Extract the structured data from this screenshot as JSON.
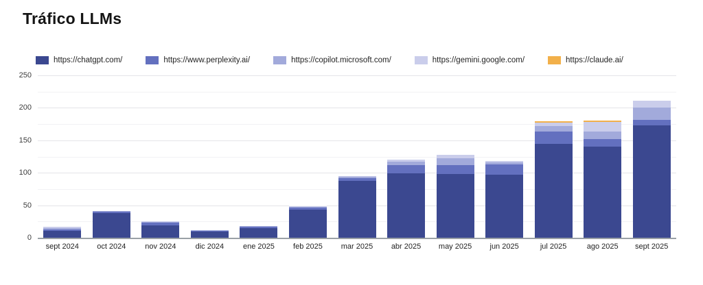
{
  "page": {
    "title": "Tráfico LLMs"
  },
  "chart_data": {
    "type": "bar",
    "stacked": true,
    "title": "Tráfico LLMs",
    "legend_position": "top",
    "grid": "horizontal major every 50, minor every 25",
    "ylim": [
      0,
      250
    ],
    "yticks": [
      0,
      50,
      100,
      150,
      200,
      250
    ],
    "categories": [
      "sept 2024",
      "oct 2024",
      "nov 2024",
      "dic 2024",
      "ene 2025",
      "feb 2025",
      "mar 2025",
      "abr 2025",
      "may 2025",
      "jun 2025",
      "jul 2025",
      "ago 2025",
      "sept 2025"
    ],
    "series": [
      {
        "name": "https://chatgpt.com/",
        "color": "#3b4890",
        "values": [
          11,
          38,
          19,
          9,
          15,
          43,
          88,
          99,
          98,
          97,
          145,
          140,
          173
        ]
      },
      {
        "name": "https://www.perplexity.ai/",
        "color": "#6370bf",
        "values": [
          2,
          2,
          4,
          2,
          2,
          3,
          4,
          13,
          14,
          16,
          18,
          12,
          8
        ]
      },
      {
        "name": "https://copilot.microsoft.com/",
        "color": "#a2aadb",
        "values": [
          2,
          1,
          1,
          1,
          1,
          2,
          2,
          5,
          10,
          3,
          9,
          12,
          19
        ]
      },
      {
        "name": "https://gemini.google.com/",
        "color": "#cacdeb",
        "values": [
          2,
          0,
          1,
          0,
          0,
          1,
          1,
          3,
          6,
          2,
          5,
          14,
          11
        ]
      },
      {
        "name": "https://claude.ai/",
        "color": "#f2b04a",
        "values": [
          0,
          0,
          0,
          0,
          0,
          0,
          0,
          0,
          0,
          0,
          2,
          2,
          0
        ]
      }
    ]
  },
  "layout_colors": {
    "grid_major": "#e4e4e8",
    "grid_minor": "#f1f1f4",
    "axis_line": "#9aa0a6",
    "text": "#222222"
  }
}
